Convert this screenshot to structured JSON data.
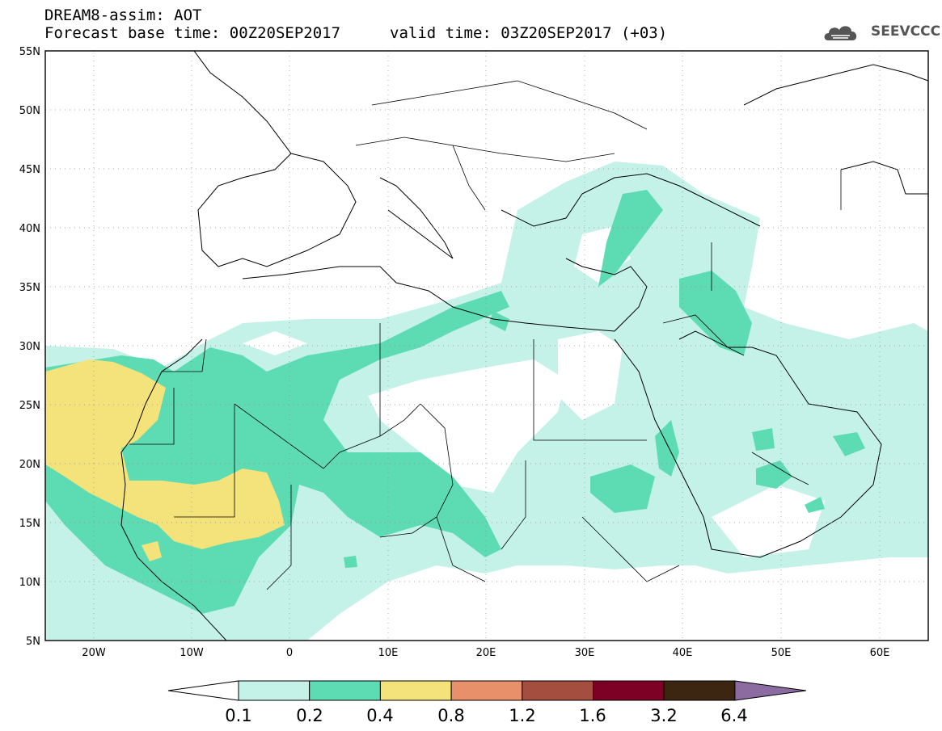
{
  "header": {
    "title_line1": "DREAM8-assim: AOT",
    "title_line2": "Forecast base time: 00Z20SEP2017",
    "valid_time": "valid time: 03Z20SEP2017 (+03)"
  },
  "logo": {
    "text": "SEEVCCC",
    "icon": "cloud-logo-icon"
  },
  "map": {
    "lat_labels": [
      "55N",
      "50N",
      "45N",
      "40N",
      "35N",
      "30N",
      "25N",
      "20N",
      "15N",
      "10N",
      "5N"
    ],
    "lon_labels": [
      "20W",
      "10W",
      "0",
      "10E",
      "20E",
      "30E",
      "40E",
      "50E",
      "60E"
    ],
    "extent": {
      "lon_min": -25,
      "lon_max": 65,
      "lat_min": 5,
      "lat_max": 55
    }
  },
  "colorbar": {
    "labels": [
      "0.1",
      "0.2",
      "0.4",
      "0.8",
      "1.2",
      "1.6",
      "3.2",
      "6.4"
    ],
    "colors": [
      "#ffffff",
      "#c5f2e8",
      "#5ddcb3",
      "#f4e27a",
      "#e8906a",
      "#a44e40",
      "#7d0025",
      "#3c2612",
      "#8c6ba0"
    ]
  },
  "legend_colors": {
    "level_01": "#c5f2e8",
    "level_02": "#5ddcb3",
    "level_04": "#f4e27a"
  }
}
